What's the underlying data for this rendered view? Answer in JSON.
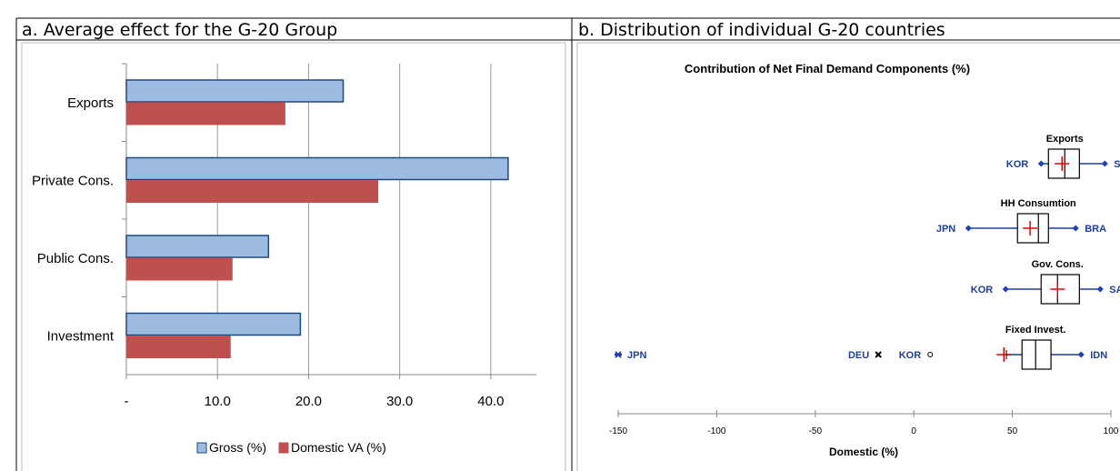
{
  "chart_data": [
    {
      "type": "bar",
      "orientation": "horizontal",
      "panel_label": "a. Average effect for the G-20 Group",
      "categories": [
        "Exports",
        "Private Cons.",
        "Public Cons.",
        "Investment"
      ],
      "series": [
        {
          "name": "Gross (%)",
          "color": "#9dbbe0",
          "values": [
            23.8,
            41.9,
            15.6,
            19.1
          ]
        },
        {
          "name": "Domestic VA (%)",
          "color": "#c0504d",
          "values": [
            17.4,
            27.6,
            11.6,
            11.4
          ]
        }
      ],
      "xlim": [
        0,
        45
      ],
      "xticks": [
        {
          "value": 0,
          "label": "-"
        },
        {
          "value": 10,
          "label": "10.0"
        },
        {
          "value": 20,
          "label": "20.0"
        },
        {
          "value": 30,
          "label": "30.0"
        },
        {
          "value": 40,
          "label": "40.0"
        }
      ],
      "grid": true,
      "legend": "bottom"
    },
    {
      "type": "box",
      "panel_label": "b. Distribution of individual G-20 countries",
      "title": "Contribution of Net Final Demand Components  (%)",
      "xlabel": "Domestic (%)",
      "xlim": [
        -150,
        100
      ],
      "xticks": [
        -150,
        -100,
        -50,
        0,
        50,
        100
      ],
      "boxes": [
        {
          "name": "Exports",
          "min": 64.6,
          "q1": 68.3,
          "median": 76.6,
          "q3": 84,
          "max": 96.9,
          "mean": 75.2,
          "min_label": "KOR",
          "max_label": "SAU"
        },
        {
          "name": "HH Consumtion",
          "min": 27.7,
          "q1": 52.6,
          "median": 63.2,
          "q3": 68.3,
          "max": 82.1,
          "mean": 59,
          "min_label": "JPN",
          "max_label": "BRA"
        },
        {
          "name": "Gov. Cons.",
          "min": 46.6,
          "q1": 64.6,
          "median": 72.9,
          "q3": 84,
          "max": 94.6,
          "mean": 72.9,
          "min_label": "KOR",
          "max_label": "SAU"
        },
        {
          "name": "Fixed Invest.",
          "min": 47,
          "q1": 54.9,
          "median": 61.8,
          "q3": 69.6,
          "max": 84.9,
          "mean": 45.7,
          "max_label": "IDN",
          "outliers": [
            {
              "label": "KOR",
              "value": 8.3,
              "marker": "circle"
            },
            {
              "label": "DEU",
              "value": -18,
              "marker": "x"
            },
            {
              "label": "JPN",
              "value": -150,
              "marker": "asterisk"
            }
          ]
        }
      ]
    }
  ]
}
